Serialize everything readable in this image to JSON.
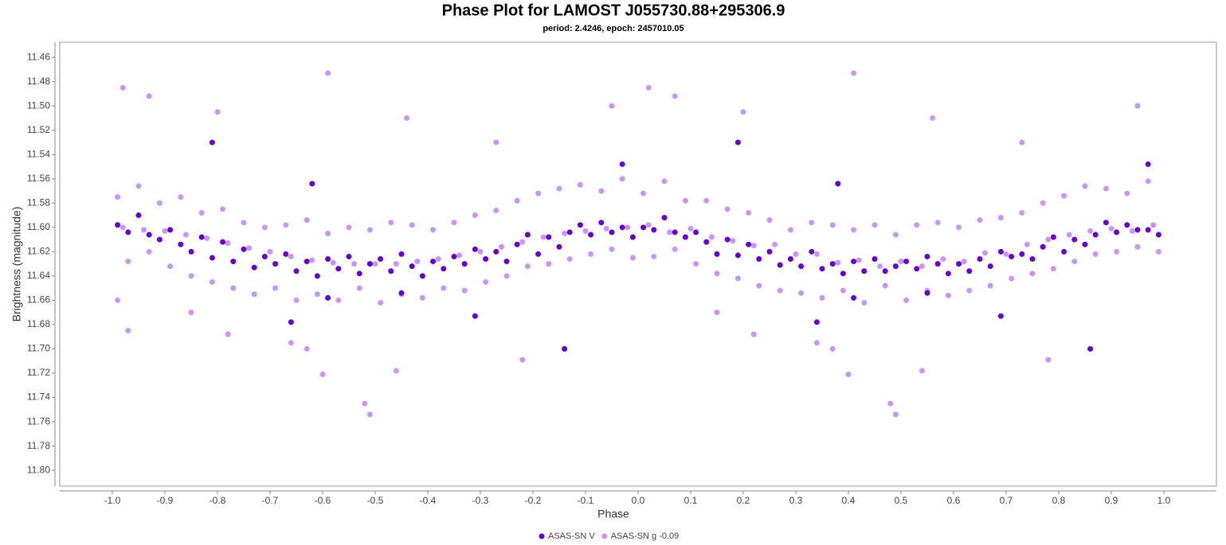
{
  "chart_data": {
    "type": "scatter",
    "title": "Phase Plot for LAMOST J055730.88+295306.9",
    "subtitle": "period: 2.4246, epoch: 2457010.05",
    "x_label": "Phase",
    "y_label": "Brightness (magnitude)",
    "xlim": [
      -1.1,
      1.1
    ],
    "ylim": [
      11.4475,
      11.813
    ],
    "y_inverted": true,
    "grid": false,
    "legend": "bottom",
    "xticks": [
      {
        "value": -1.0,
        "label": "-1.0"
      },
      -0.9,
      -0.8,
      -0.7,
      -0.6,
      -0.5,
      -0.4,
      -0.3,
      -0.2,
      -0.1,
      {
        "value": 0,
        "label": "0.0"
      },
      0.1,
      0.2,
      0.3,
      0.4,
      0.5,
      0.6,
      0.7,
      0.8,
      0.9,
      {
        "value": 1.0,
        "label": "1.0"
      }
    ],
    "yticks": [
      11.46,
      11.48,
      {
        "value": 11.5,
        "label": "11.50"
      },
      11.52,
      11.54,
      11.56,
      11.58,
      {
        "value": 11.6,
        "label": "11.60"
      },
      11.62,
      11.64,
      11.66,
      11.68,
      {
        "value": 11.7,
        "label": "11.70"
      },
      11.72,
      11.74,
      11.76,
      11.78,
      {
        "value": 11.8,
        "label": "11.80"
      }
    ],
    "series": [
      {
        "name": "ASAS-SN V",
        "color": "#6600cc",
        "x": [
          -0.99,
          -0.97,
          -0.95,
          -0.93,
          -0.91,
          -0.89,
          -0.87,
          -0.85,
          -0.83,
          -0.81,
          -0.79,
          -0.77,
          -0.75,
          -0.73,
          -0.71,
          -0.69,
          -0.67,
          -0.65,
          -0.63,
          -0.61,
          -0.59,
          -0.57,
          -0.55,
          -0.53,
          -0.51,
          -0.49,
          -0.47,
          -0.45,
          -0.43,
          -0.41,
          -0.39,
          -0.37,
          -0.35,
          -0.33,
          -0.31,
          -0.29,
          -0.27,
          -0.25,
          -0.23,
          -0.21,
          -0.19,
          -0.17,
          -0.15,
          -0.13,
          -0.11,
          -0.09,
          -0.07,
          -0.05,
          -0.03,
          -0.01,
          0.01,
          0.03,
          0.05,
          0.07,
          0.09,
          0.11,
          0.13,
          0.15,
          0.17,
          0.19,
          0.21,
          0.23,
          0.25,
          0.27,
          0.29,
          0.31,
          0.33,
          0.35,
          0.37,
          0.39,
          0.41,
          0.43,
          0.45,
          0.47,
          0.49,
          0.51,
          0.53,
          0.55,
          0.57,
          0.59,
          0.61,
          0.63,
          0.65,
          0.67,
          0.69,
          0.71,
          0.73,
          0.75,
          0.77,
          0.79,
          0.81,
          0.83,
          0.85,
          0.87,
          0.89,
          0.91,
          0.93,
          0.95,
          0.97,
          0.99,
          -0.81,
          -0.62,
          -0.66,
          -0.31,
          -0.14,
          -0.03,
          -0.45,
          -0.59,
          0.19,
          0.38,
          0.34,
          0.69,
          0.86,
          0.97,
          0.55,
          0.41
        ],
        "values": [
          11.598,
          11.604,
          11.59,
          11.606,
          11.61,
          11.602,
          11.614,
          11.62,
          11.608,
          11.625,
          11.612,
          11.628,
          11.618,
          11.633,
          11.624,
          11.63,
          11.622,
          11.636,
          11.628,
          11.64,
          11.626,
          11.634,
          11.624,
          11.638,
          11.63,
          11.626,
          11.636,
          11.622,
          11.632,
          11.64,
          11.628,
          11.634,
          11.624,
          11.63,
          11.618,
          11.626,
          11.62,
          11.628,
          11.614,
          11.606,
          11.622,
          11.608,
          11.616,
          11.604,
          11.598,
          11.606,
          11.596,
          11.604,
          11.6,
          11.608,
          11.6,
          11.602,
          11.592,
          11.604,
          11.608,
          11.604,
          11.612,
          11.622,
          11.61,
          11.623,
          11.614,
          11.626,
          11.62,
          11.631,
          11.626,
          11.632,
          11.62,
          11.634,
          11.63,
          11.638,
          11.628,
          11.636,
          11.626,
          11.636,
          11.632,
          11.628,
          11.634,
          11.624,
          11.63,
          11.638,
          11.63,
          11.636,
          11.626,
          11.632,
          11.62,
          11.624,
          11.622,
          11.626,
          11.616,
          11.608,
          11.62,
          11.61,
          11.614,
          11.606,
          11.596,
          11.604,
          11.598,
          11.602,
          11.602,
          11.606,
          11.53,
          11.564,
          11.678,
          11.673,
          11.7,
          11.548,
          11.654,
          11.658,
          11.53,
          11.564,
          11.678,
          11.673,
          11.7,
          11.548,
          11.654,
          11.658
        ]
      },
      {
        "name": "ASAS-SN g -0.09",
        "color": "#c896f8",
        "x": [
          -0.99,
          -0.97,
          -0.95,
          -0.93,
          -0.91,
          -0.89,
          -0.87,
          -0.85,
          -0.83,
          -0.81,
          -0.79,
          -0.77,
          -0.75,
          -0.73,
          -0.71,
          -0.69,
          -0.67,
          -0.65,
          -0.63,
          -0.61,
          -0.59,
          -0.57,
          -0.55,
          -0.53,
          -0.51,
          -0.49,
          -0.47,
          -0.45,
          -0.43,
          -0.41,
          -0.39,
          -0.37,
          -0.35,
          -0.33,
          -0.31,
          -0.29,
          -0.27,
          -0.25,
          -0.23,
          -0.21,
          -0.19,
          -0.17,
          -0.15,
          -0.13,
          -0.11,
          -0.09,
          -0.07,
          -0.05,
          -0.03,
          -0.01,
          -0.98,
          -0.94,
          -0.9,
          -0.86,
          -0.82,
          -0.78,
          -0.74,
          -0.7,
          -0.66,
          -0.62,
          -0.58,
          -0.54,
          -0.5,
          -0.46,
          -0.42,
          -0.38,
          -0.34,
          -0.3,
          -0.26,
          -0.22,
          -0.18,
          -0.14,
          -0.1,
          -0.06,
          -0.02,
          0.01,
          0.03,
          0.05,
          0.07,
          0.09,
          0.11,
          0.13,
          0.15,
          0.17,
          0.19,
          0.21,
          0.23,
          0.25,
          0.27,
          0.29,
          0.31,
          0.33,
          0.35,
          0.37,
          0.39,
          0.41,
          0.43,
          0.45,
          0.47,
          0.49,
          0.51,
          0.53,
          0.55,
          0.57,
          0.59,
          0.61,
          0.63,
          0.65,
          0.67,
          0.69,
          0.71,
          0.73,
          0.75,
          0.77,
          0.79,
          0.81,
          0.83,
          0.85,
          0.87,
          0.89,
          0.91,
          0.93,
          0.95,
          0.97,
          0.99,
          0.02,
          0.06,
          0.1,
          0.14,
          0.18,
          0.22,
          0.26,
          0.3,
          0.34,
          0.38,
          0.42,
          0.46,
          0.5,
          0.54,
          0.58,
          0.62,
          0.66,
          0.7,
          0.74,
          0.78,
          0.82,
          0.86,
          0.9,
          0.94,
          0.98,
          -0.98,
          -0.93,
          -0.59,
          -0.52,
          -0.51,
          -0.46,
          -0.6,
          -0.8,
          0.02,
          0.07,
          0.41,
          0.48,
          0.49,
          0.54,
          0.4,
          0.95,
          -0.05,
          0.2,
          -0.22,
          0.78,
          -0.44,
          0.56,
          -0.99,
          -0.97,
          -0.66,
          -0.63,
          0.34,
          0.37,
          -0.78,
          0.22,
          -0.85,
          0.15,
          -0.27,
          0.73
        ],
        "values": [
          11.575,
          11.628,
          11.566,
          11.62,
          11.58,
          11.632,
          11.575,
          11.64,
          11.588,
          11.645,
          11.585,
          11.65,
          11.596,
          11.655,
          11.6,
          11.65,
          11.598,
          11.66,
          11.594,
          11.655,
          11.605,
          11.66,
          11.6,
          11.65,
          11.602,
          11.662,
          11.596,
          11.655,
          11.598,
          11.658,
          11.602,
          11.65,
          11.596,
          11.652,
          11.59,
          11.645,
          11.586,
          11.64,
          11.578,
          11.632,
          11.572,
          11.63,
          11.568,
          11.626,
          11.565,
          11.622,
          11.57,
          11.618,
          11.56,
          11.625,
          11.6,
          11.602,
          11.603,
          11.606,
          11.609,
          11.613,
          11.617,
          11.62,
          11.624,
          11.627,
          11.629,
          11.63,
          11.63,
          11.63,
          11.628,
          11.626,
          11.623,
          11.62,
          11.616,
          11.612,
          11.608,
          11.605,
          11.603,
          11.601,
          11.6,
          11.572,
          11.624,
          11.562,
          11.618,
          11.578,
          11.63,
          11.578,
          11.638,
          11.585,
          11.642,
          11.588,
          11.648,
          11.594,
          11.652,
          11.602,
          11.654,
          11.596,
          11.658,
          11.598,
          11.652,
          11.602,
          11.662,
          11.598,
          11.648,
          11.606,
          11.66,
          11.598,
          11.652,
          11.596,
          11.656,
          11.6,
          11.652,
          11.594,
          11.648,
          11.592,
          11.642,
          11.588,
          11.638,
          11.58,
          11.634,
          11.574,
          11.628,
          11.566,
          11.622,
          11.568,
          11.62,
          11.572,
          11.616,
          11.562,
          11.62,
          11.598,
          11.604,
          11.601,
          11.608,
          11.611,
          11.615,
          11.614,
          11.622,
          11.622,
          11.629,
          11.627,
          11.632,
          11.628,
          11.632,
          11.626,
          11.628,
          11.621,
          11.622,
          11.614,
          11.61,
          11.606,
          11.603,
          11.601,
          11.603,
          11.598,
          11.485,
          11.492,
          11.473,
          11.745,
          11.754,
          11.718,
          11.721,
          11.505,
          11.485,
          11.492,
          11.473,
          11.745,
          11.754,
          11.718,
          11.721,
          11.5,
          11.5,
          11.505,
          11.709,
          11.709,
          11.51,
          11.51,
          11.66,
          11.685,
          11.695,
          11.7,
          11.695,
          11.7,
          11.688,
          11.688,
          11.67,
          11.67,
          11.53,
          11.53
        ]
      }
    ]
  }
}
